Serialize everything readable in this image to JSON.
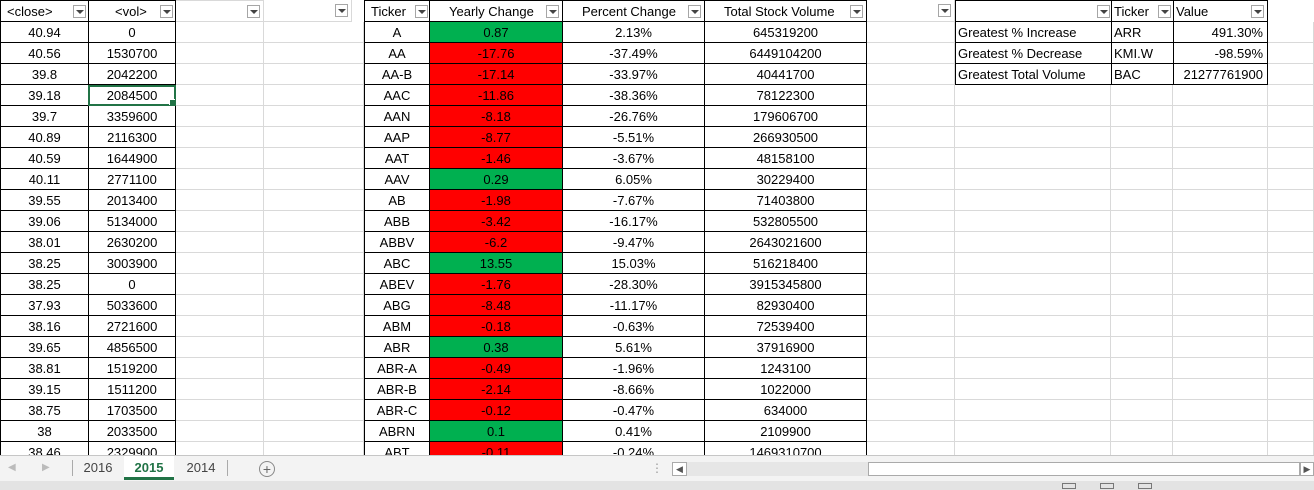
{
  "headers": {
    "close": "<close>",
    "vol": "<vol>",
    "ticker": "Ticker",
    "yearly_change": "Yearly Change",
    "percent_change": "Percent Change",
    "total_volume": "Total Stock Volume",
    "summary_ticker": "Ticker",
    "summary_value": "Value"
  },
  "price_rows": [
    {
      "close": "40.94",
      "vol": "0"
    },
    {
      "close": "40.56",
      "vol": "1530700"
    },
    {
      "close": "39.8",
      "vol": "2042200"
    },
    {
      "close": "39.18",
      "vol": "2084500"
    },
    {
      "close": "39.7",
      "vol": "3359600"
    },
    {
      "close": "40.89",
      "vol": "2116300"
    },
    {
      "close": "40.59",
      "vol": "1644900"
    },
    {
      "close": "40.11",
      "vol": "2771100"
    },
    {
      "close": "39.55",
      "vol": "2013400"
    },
    {
      "close": "39.06",
      "vol": "5134000"
    },
    {
      "close": "38.01",
      "vol": "2630200"
    },
    {
      "close": "38.25",
      "vol": "3003900"
    },
    {
      "close": "38.25",
      "vol": "0"
    },
    {
      "close": "37.93",
      "vol": "5033600"
    },
    {
      "close": "38.16",
      "vol": "2721600"
    },
    {
      "close": "39.65",
      "vol": "4856500"
    },
    {
      "close": "38.81",
      "vol": "1519200"
    },
    {
      "close": "39.15",
      "vol": "1511200"
    },
    {
      "close": "38.75",
      "vol": "1703500"
    },
    {
      "close": "38",
      "vol": "2033500"
    },
    {
      "close": "38.46",
      "vol": "2329900"
    }
  ],
  "results": [
    {
      "ticker": "A",
      "yearly_change": "0.87",
      "percent_change": "2.13%",
      "total_volume": "645319200",
      "trend": "up"
    },
    {
      "ticker": "AA",
      "yearly_change": "-17.76",
      "percent_change": "-37.49%",
      "total_volume": "6449104200",
      "trend": "down"
    },
    {
      "ticker": "AA-B",
      "yearly_change": "-17.14",
      "percent_change": "-33.97%",
      "total_volume": "40441700",
      "trend": "down"
    },
    {
      "ticker": "AAC",
      "yearly_change": "-11.86",
      "percent_change": "-38.36%",
      "total_volume": "78122300",
      "trend": "down"
    },
    {
      "ticker": "AAN",
      "yearly_change": "-8.18",
      "percent_change": "-26.76%",
      "total_volume": "179606700",
      "trend": "down"
    },
    {
      "ticker": "AAP",
      "yearly_change": "-8.77",
      "percent_change": "-5.51%",
      "total_volume": "266930500",
      "trend": "down"
    },
    {
      "ticker": "AAT",
      "yearly_change": "-1.46",
      "percent_change": "-3.67%",
      "total_volume": "48158100",
      "trend": "down"
    },
    {
      "ticker": "AAV",
      "yearly_change": "0.29",
      "percent_change": "6.05%",
      "total_volume": "30229400",
      "trend": "up"
    },
    {
      "ticker": "AB",
      "yearly_change": "-1.98",
      "percent_change": "-7.67%",
      "total_volume": "71403800",
      "trend": "down"
    },
    {
      "ticker": "ABB",
      "yearly_change": "-3.42",
      "percent_change": "-16.17%",
      "total_volume": "532805500",
      "trend": "down"
    },
    {
      "ticker": "ABBV",
      "yearly_change": "-6.2",
      "percent_change": "-9.47%",
      "total_volume": "2643021600",
      "trend": "down"
    },
    {
      "ticker": "ABC",
      "yearly_change": "13.55",
      "percent_change": "15.03%",
      "total_volume": "516218400",
      "trend": "up"
    },
    {
      "ticker": "ABEV",
      "yearly_change": "-1.76",
      "percent_change": "-28.30%",
      "total_volume": "3915345800",
      "trend": "down"
    },
    {
      "ticker": "ABG",
      "yearly_change": "-8.48",
      "percent_change": "-11.17%",
      "total_volume": "82930400",
      "trend": "down"
    },
    {
      "ticker": "ABM",
      "yearly_change": "-0.18",
      "percent_change": "-0.63%",
      "total_volume": "72539400",
      "trend": "down"
    },
    {
      "ticker": "ABR",
      "yearly_change": "0.38",
      "percent_change": "5.61%",
      "total_volume": "37916900",
      "trend": "up"
    },
    {
      "ticker": "ABR-A",
      "yearly_change": "-0.49",
      "percent_change": "-1.96%",
      "total_volume": "1243100",
      "trend": "down"
    },
    {
      "ticker": "ABR-B",
      "yearly_change": "-2.14",
      "percent_change": "-8.66%",
      "total_volume": "1022000",
      "trend": "down"
    },
    {
      "ticker": "ABR-C",
      "yearly_change": "-0.12",
      "percent_change": "-0.47%",
      "total_volume": "634000",
      "trend": "down"
    },
    {
      "ticker": "ABRN",
      "yearly_change": "0.1",
      "percent_change": "0.41%",
      "total_volume": "2109900",
      "trend": "up"
    },
    {
      "ticker": "ABT",
      "yearly_change": "-0.11",
      "percent_change": "-0.24%",
      "total_volume": "1469310700",
      "trend": "down"
    }
  ],
  "summary": [
    {
      "label": "Greatest % Increase",
      "ticker": "ARR",
      "value": "491.30%"
    },
    {
      "label": "Greatest % Decrease",
      "ticker": "KMI.W",
      "value": "-98.59%"
    },
    {
      "label": "Greatest Total Volume",
      "ticker": "BAC",
      "value": "21277761900"
    }
  ],
  "sheets": [
    "2016",
    "2015",
    "2014"
  ],
  "active_sheet": "2015",
  "colors": {
    "positive": "#00b050",
    "negative": "#ff0000",
    "accent": "#217346"
  },
  "icons": {
    "filter": "dropdown-arrow-icon",
    "add_sheet": "plus-circle-icon",
    "scroll_left": "triangle-left-icon",
    "scroll_right": "triangle-right-icon"
  }
}
